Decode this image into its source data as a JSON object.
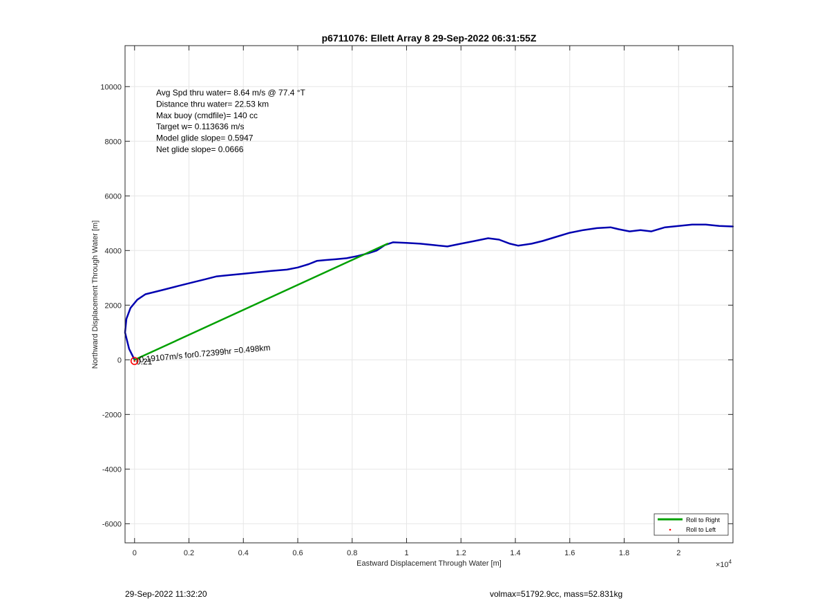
{
  "chart_data": {
    "type": "line",
    "title": "p6711076: Ellett Array 8 29-Sep-2022 06:31:55Z",
    "xlabel": "Eastward Displacement Through Water [m]",
    "ylabel": "Northward Displacement Through Water [m]",
    "x_exponent_label": "×10",
    "x_exponent_power": "4",
    "xlim": [
      -350,
      22000
    ],
    "ylim": [
      -6700,
      11500
    ],
    "x_ticks": [
      0,
      2000,
      4000,
      6000,
      8000,
      10000,
      12000,
      14000,
      16000,
      18000,
      20000
    ],
    "x_tick_labels": [
      "0",
      "0.2",
      "0.4",
      "0.6",
      "0.8",
      "1",
      "1.2",
      "1.4",
      "1.6",
      "1.8",
      "2"
    ],
    "y_ticks": [
      -6000,
      -4000,
      -2000,
      0,
      2000,
      4000,
      6000,
      8000,
      10000
    ],
    "y_tick_labels": [
      "-6000",
      "-4000",
      "-2000",
      "0",
      "2000",
      "4000",
      "6000",
      "8000",
      "10000"
    ],
    "grid": true,
    "legend_position": "bottom-right",
    "legend": [
      {
        "label": "Roll to Right",
        "color": "#00a000",
        "style": "line"
      },
      {
        "label": "Roll to Left",
        "color": "#ff0000",
        "style": "dot"
      }
    ],
    "info_lines": [
      "Avg Spd thru water=  8.64 m/s @  77.4 °T",
      "Distance thru water= 22.53 km",
      "Max buoy (cmdfile)= 140 cc",
      "Target w= 0.113636 m/s",
      "Model glide slope= 0.5947",
      "Net glide slope= 0.0666"
    ],
    "current_annotation": "0.19107m/s for0.72399hr =0.498km",
    "start_marker_overlap_text": "0.21",
    "series": [
      {
        "color": "#0000b0",
        "x": [
          0,
          -200,
          -350,
          -300,
          -150,
          100,
          400,
          1000,
          1600,
          2200,
          2600,
          3000,
          3500,
          4000,
          4500,
          5000,
          5600,
          6000,
          6400,
          6700,
          7000,
          7400,
          7800,
          8200,
          8600,
          8900,
          9200,
          9500,
          10000,
          10500,
          11000,
          11500,
          12000,
          12500,
          13000,
          13400,
          13800,
          14100,
          14600,
          15000,
          15500,
          16000,
          16500,
          17000,
          17500,
          17800,
          18200,
          18600,
          19000,
          19500,
          20000,
          20500,
          21000,
          21500,
          22000
        ],
        "y": [
          0,
          400,
          1000,
          1500,
          1900,
          2200,
          2400,
          2550,
          2700,
          2850,
          2950,
          3050,
          3100,
          3150,
          3200,
          3250,
          3300,
          3380,
          3500,
          3620,
          3650,
          3680,
          3720,
          3800,
          3900,
          4000,
          4200,
          4300,
          4280,
          4250,
          4200,
          4150,
          4250,
          4350,
          4450,
          4400,
          4250,
          4180,
          4250,
          4350,
          4500,
          4650,
          4750,
          4820,
          4850,
          4780,
          4700,
          4750,
          4700,
          4850,
          4900,
          4950,
          4950,
          4900,
          4880
        ]
      },
      {
        "color": "#00a000",
        "x": [
          0,
          9300
        ],
        "y": [
          0,
          4250
        ]
      }
    ]
  },
  "footer": {
    "timestamp": "29-Sep-2022 11:32:20",
    "mass_info": "volmax=51792.9cc, mass=52.831kg"
  }
}
